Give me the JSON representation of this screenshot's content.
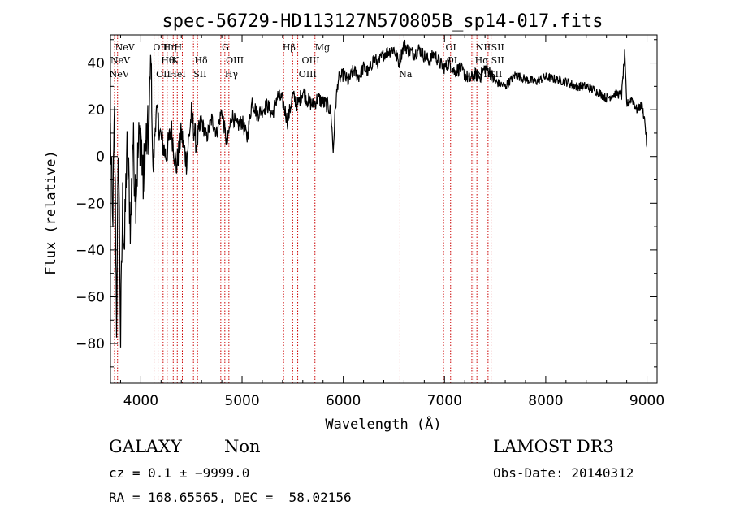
{
  "colors": {
    "background": "#ffffff",
    "foreground": "#000000",
    "line_marker": "#cc0000"
  },
  "chart_data": {
    "type": "line",
    "title": "spec-56729-HD113127N570805B_sp14-017.fits",
    "xlabel": "Wavelength (Å)",
    "ylabel": "Flux (relative)",
    "xlim": [
      3700,
      9100
    ],
    "ylim": [
      -97,
      52
    ],
    "x_ticks": [
      4000,
      5000,
      6000,
      7000,
      8000,
      9000
    ],
    "y_ticks": [
      -80,
      -60,
      -40,
      -20,
      0,
      20,
      40
    ],
    "series": [
      {
        "name": "spectrum",
        "x": [
          3700,
          3720,
          3740,
          3760,
          3780,
          3800,
          3820,
          3840,
          3860,
          3880,
          3900,
          3920,
          3950,
          3980,
          4000,
          4020,
          4050,
          4080,
          4100,
          4120,
          4150,
          4200,
          4250,
          4300,
          4350,
          4400,
          4450,
          4500,
          4550,
          4600,
          4650,
          4700,
          4750,
          4800,
          4850,
          4900,
          4950,
          5000,
          5050,
          5100,
          5150,
          5200,
          5250,
          5300,
          5350,
          5400,
          5450,
          5500,
          5550,
          5600,
          5650,
          5700,
          5750,
          5800,
          5850,
          5880,
          5900,
          5920,
          5950,
          6000,
          6050,
          6100,
          6150,
          6200,
          6250,
          6300,
          6350,
          6400,
          6450,
          6500,
          6550,
          6600,
          6650,
          6700,
          6750,
          6800,
          6850,
          6900,
          6950,
          7000,
          7050,
          7100,
          7150,
          7200,
          7250,
          7300,
          7350,
          7400,
          7450,
          7500,
          7600,
          7700,
          7800,
          7900,
          8000,
          8100,
          8200,
          8300,
          8400,
          8500,
          8600,
          8700,
          8750,
          8780,
          8800,
          8850,
          8900,
          8950,
          8980,
          9000
        ],
        "y": [
          10,
          -30,
          15,
          -70,
          5,
          -78,
          -20,
          -40,
          3,
          -10,
          -30,
          8,
          -15,
          5,
          12,
          -12,
          5,
          10,
          45,
          -8,
          20,
          8,
          0,
          12,
          -5,
          10,
          -2,
          18,
          5,
          15,
          8,
          16,
          10,
          20,
          5,
          18,
          13,
          15,
          8,
          24,
          18,
          20,
          22,
          18,
          26,
          24,
          15,
          26,
          22,
          28,
          24,
          22,
          25,
          23,
          22,
          18,
          2,
          20,
          33,
          35,
          32,
          37,
          34,
          38,
          36,
          42,
          40,
          44,
          45,
          46,
          40,
          48,
          45,
          44,
          46,
          43,
          41,
          44,
          40,
          38,
          40,
          36,
          38,
          35,
          33,
          35,
          34,
          38,
          36,
          32,
          30,
          35,
          33,
          32,
          34,
          33,
          32,
          30,
          30,
          28,
          25,
          27,
          26,
          44,
          22,
          25,
          20,
          22,
          15,
          4
        ]
      }
    ],
    "lines_top": [
      {
        "label": "NeV",
        "x": 3745
      },
      {
        "label": "OII",
        "x": 4120
      },
      {
        "label": "Hη",
        "x": 4220
      },
      {
        "label": "H",
        "x": 4330
      },
      {
        "label": "G",
        "x": 4800
      },
      {
        "label": "Hβ",
        "x": 5400
      },
      {
        "label": "Mg",
        "x": 5720
      },
      {
        "label": "OI",
        "x": 7010
      },
      {
        "label": "NII",
        "x": 7310
      },
      {
        "label": "SII",
        "x": 7460
      }
    ],
    "lines_middle": [
      {
        "label": "NeV",
        "x": 3700
      },
      {
        "label": "Hθ",
        "x": 4200
      },
      {
        "label": "K",
        "x": 4310
      },
      {
        "label": "Hδ",
        "x": 4530
      },
      {
        "label": "OIII",
        "x": 4840
      },
      {
        "label": "OIII",
        "x": 5590
      },
      {
        "label": "OI",
        "x": 7020
      },
      {
        "label": "Hα",
        "x": 7300
      },
      {
        "label": "SII",
        "x": 7460
      }
    ],
    "lines_bottom": [
      {
        "label": "NeV",
        "x": 3690
      },
      {
        "label": "OII",
        "x": 4150
      },
      {
        "label": "HeI",
        "x": 4280
      },
      {
        "label": "SII",
        "x": 4520
      },
      {
        "label": "Hγ",
        "x": 4830
      },
      {
        "label": "OIII",
        "x": 5560
      },
      {
        "label": "Na",
        "x": 6550
      },
      {
        "label": "NII",
        "x": 7310
      },
      {
        "label": "SII",
        "x": 7440
      }
    ],
    "marker_lines": [
      3740,
      3770,
      4130,
      4170,
      4220,
      4260,
      4320,
      4360,
      4410,
      4520,
      4560,
      4790,
      4830,
      4870,
      5410,
      5500,
      5550,
      5720,
      6560,
      6990,
      7060,
      7270,
      7290,
      7320,
      7430,
      7460
    ]
  },
  "info": {
    "object_class": "GALAXY",
    "subclass": "Non",
    "survey": "LAMOST DR3",
    "redshift_line": "cz = 0.1 ± −9999.0",
    "obs_date_line": "Obs-Date: 20140312",
    "coords_line": "RA = 168.65565, DEC =  58.02156"
  }
}
